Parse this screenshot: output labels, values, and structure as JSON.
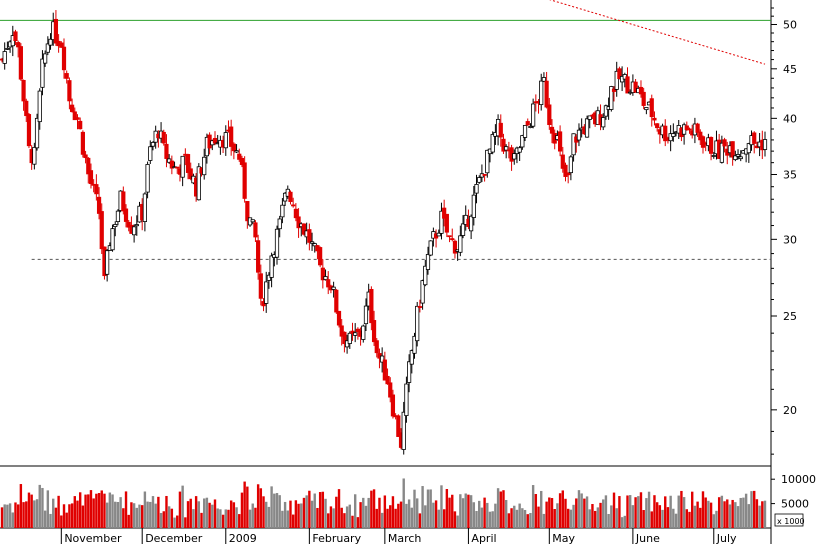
{
  "chart_data": {
    "type": "candlestick",
    "title": "",
    "price_axis": {
      "scale": "log",
      "ylim": [
        17.5,
        53
      ],
      "tick_values": [
        20,
        25,
        30,
        35,
        40,
        45,
        50
      ],
      "tick_labels": [
        "20",
        "25",
        "30",
        "35",
        "40",
        "45",
        "50"
      ]
    },
    "volume_axis": {
      "ylim": [
        0,
        12500
      ],
      "tick_values": [
        5000,
        10000
      ],
      "tick_labels": [
        "5000",
        "10000"
      ],
      "unit_label": "x 1000"
    },
    "months": [
      {
        "label": "November",
        "day": 22
      },
      {
        "label": "December",
        "day": 52
      },
      {
        "label": "2009",
        "day": 83
      },
      {
        "label": "February",
        "day": 114
      },
      {
        "label": "March",
        "day": 142
      },
      {
        "label": "April",
        "day": 173
      },
      {
        "label": "May",
        "day": 203
      },
      {
        "label": "June",
        "day": 234
      },
      {
        "label": "July",
        "day": 264
      }
    ],
    "day_range": [
      0,
      283
    ],
    "reference_lines": [
      {
        "kind": "horizontal",
        "value": 50.5,
        "style": "solid",
        "color": "#2ca02c"
      },
      {
        "kind": "horizontal",
        "value": 28.6,
        "style": "dashed",
        "color": "#555555",
        "from_day": 11
      },
      {
        "kind": "trend",
        "points": [
          [
            139,
            60
          ],
          [
            283,
            45.5
          ]
        ],
        "style": "dotted",
        "color": "#e00000"
      }
    ],
    "price_keypoints": [
      [
        0,
        46
      ],
      [
        4,
        49.5
      ],
      [
        6,
        47
      ],
      [
        8,
        42
      ],
      [
        10,
        37
      ],
      [
        12,
        36.5
      ],
      [
        15,
        45
      ],
      [
        18,
        49.5
      ],
      [
        22,
        48
      ],
      [
        25,
        42
      ],
      [
        28,
        40
      ],
      [
        32,
        35
      ],
      [
        36,
        32
      ],
      [
        38,
        27
      ],
      [
        40,
        30
      ],
      [
        44,
        33
      ],
      [
        48,
        31
      ],
      [
        52,
        32
      ],
      [
        55,
        37
      ],
      [
        58,
        39
      ],
      [
        60,
        37
      ],
      [
        64,
        35.5
      ],
      [
        68,
        36
      ],
      [
        72,
        34
      ],
      [
        76,
        37.5
      ],
      [
        80,
        38.5
      ],
      [
        84,
        38
      ],
      [
        88,
        36.5
      ],
      [
        91,
        32
      ],
      [
        94,
        30
      ],
      [
        96,
        25.5
      ],
      [
        98,
        27
      ],
      [
        100,
        29
      ],
      [
        103,
        31
      ],
      [
        106,
        34
      ],
      [
        110,
        31.5
      ],
      [
        114,
        30
      ],
      [
        118,
        28
      ],
      [
        122,
        27
      ],
      [
        126,
        24
      ],
      [
        129,
        23.5
      ],
      [
        133,
        24
      ],
      [
        136,
        26
      ],
      [
        139,
        23
      ],
      [
        143,
        21.5
      ],
      [
        146,
        19.5
      ],
      [
        148,
        18.5
      ],
      [
        151,
        22
      ],
      [
        154,
        25
      ],
      [
        157,
        28
      ],
      [
        160,
        30
      ],
      [
        163,
        31.5
      ],
      [
        166,
        30
      ],
      [
        169,
        29.5
      ],
      [
        172,
        31
      ],
      [
        175,
        33
      ],
      [
        178,
        35
      ],
      [
        181,
        37
      ],
      [
        184,
        39
      ],
      [
        187,
        37
      ],
      [
        190,
        36
      ],
      [
        193,
        38
      ],
      [
        196,
        40
      ],
      [
        199,
        42
      ],
      [
        201,
        43.5
      ],
      [
        203,
        40
      ],
      [
        206,
        38
      ],
      [
        208,
        35
      ],
      [
        210,
        34.5
      ],
      [
        212,
        38
      ],
      [
        215,
        39
      ],
      [
        218,
        39.5
      ],
      [
        221,
        40
      ],
      [
        224,
        41
      ],
      [
        226,
        43
      ],
      [
        229,
        44
      ],
      [
        232,
        43.5
      ],
      [
        235,
        43
      ],
      [
        238,
        41.5
      ],
      [
        241,
        40.5
      ],
      [
        244,
        39
      ],
      [
        247,
        38.5
      ],
      [
        250,
        39
      ],
      [
        254,
        39
      ],
      [
        258,
        38.5
      ],
      [
        262,
        37.5
      ],
      [
        266,
        37
      ],
      [
        270,
        37.5
      ],
      [
        274,
        37
      ],
      [
        277,
        38
      ],
      [
        280,
        37.5
      ],
      [
        283,
        38
      ]
    ]
  }
}
